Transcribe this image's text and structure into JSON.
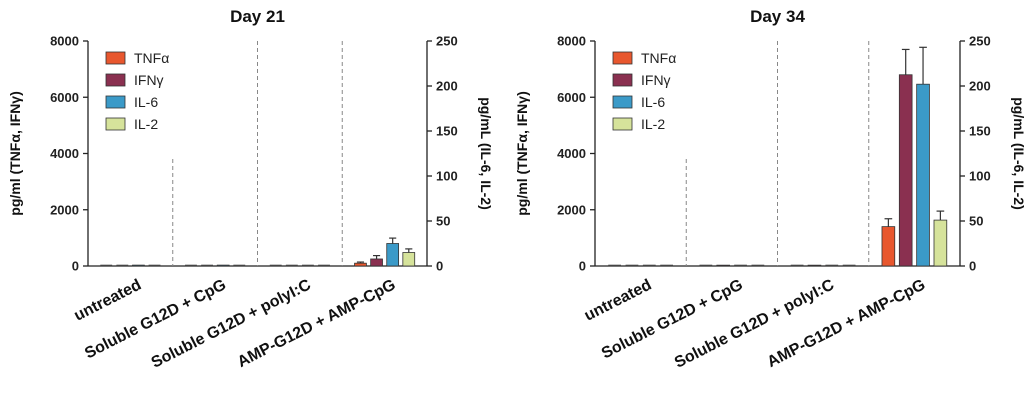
{
  "chart_data": [
    {
      "type": "bar",
      "title": "Day 21",
      "ylabel_left": "pg/ml (TNFα, IFNγ)",
      "ylabel_right": "pg/mL (IL-6, IL-2)",
      "ylim_left": [
        0,
        8000
      ],
      "ylim_right": [
        0,
        250
      ],
      "yticks_left": [
        "0",
        "2000",
        "4000",
        "6000",
        "8000"
      ],
      "yticks_right": [
        "0",
        "50",
        "100",
        "150",
        "200",
        "250"
      ],
      "categories": [
        "untreated",
        "Soluble G12D + CpG",
        "Soluble G12D + polyI:C",
        "AMP-G12D + AMP-CpG"
      ],
      "highlight_category": "AMP-G12D + AMP-CpG",
      "highlight_color": "#d9532b",
      "legend_position": "top-left",
      "series": [
        {
          "name": "TNFα",
          "axis": "left",
          "color": "#e8572e",
          "values": [
            0,
            0,
            0,
            100
          ],
          "errors": [
            0,
            0,
            0,
            40
          ]
        },
        {
          "name": "IFNγ",
          "axis": "left",
          "color": "#8a3050",
          "values": [
            0,
            0,
            0,
            250
          ],
          "errors": [
            0,
            0,
            0,
            120
          ]
        },
        {
          "name": "IL-6",
          "axis": "right",
          "color": "#3b9ac8",
          "values": [
            1,
            1,
            0,
            25
          ],
          "errors": [
            0,
            0,
            0,
            6
          ]
        },
        {
          "name": "IL-2",
          "axis": "right",
          "color": "#d6e39b",
          "values": [
            0,
            0,
            0,
            15
          ],
          "errors": [
            0,
            0,
            0,
            4
          ]
        }
      ]
    },
    {
      "type": "bar",
      "title": "Day 34",
      "ylabel_left": "pg/ml (TNFα, IFNγ)",
      "ylabel_right": "pg/mL (IL-6, IL-2)",
      "ylim_left": [
        0,
        8000
      ],
      "ylim_right": [
        0,
        250
      ],
      "yticks_left": [
        "0",
        "2000",
        "4000",
        "6000",
        "8000"
      ],
      "yticks_right": [
        "0",
        "50",
        "100",
        "150",
        "200",
        "250"
      ],
      "categories": [
        "untreated",
        "Soluble G12D + CpG",
        "Soluble G12D + polyI:C",
        "AMP-G12D + AMP-CpG"
      ],
      "highlight_category": "AMP-G12D + AMP-CpG",
      "highlight_color": "#d9532b",
      "legend_position": "top-left",
      "series": [
        {
          "name": "TNFα",
          "axis": "left",
          "color": "#e8572e",
          "values": [
            0,
            0,
            0,
            1400
          ],
          "errors": [
            0,
            0,
            0,
            280
          ]
        },
        {
          "name": "IFNγ",
          "axis": "left",
          "color": "#8a3050",
          "values": [
            0,
            30,
            30,
            6800
          ],
          "errors": [
            0,
            0,
            0,
            900
          ]
        },
        {
          "name": "IL-6",
          "axis": "right",
          "color": "#3b9ac8",
          "values": [
            0,
            0,
            0,
            202
          ],
          "errors": [
            0,
            0,
            0,
            41
          ]
        },
        {
          "name": "IL-2",
          "axis": "right",
          "color": "#d6e39b",
          "values": [
            0,
            0,
            0,
            51
          ],
          "errors": [
            0,
            0,
            0,
            10
          ]
        }
      ]
    }
  ]
}
